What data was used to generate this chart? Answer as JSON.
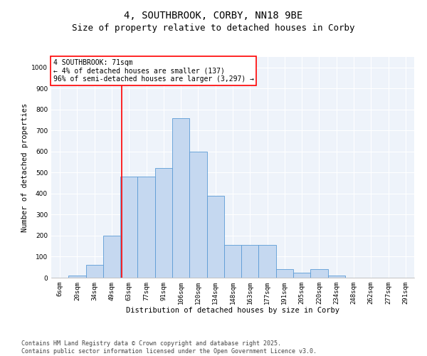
{
  "title1": "4, SOUTHBROOK, CORBY, NN18 9BE",
  "title2": "Size of property relative to detached houses in Corby",
  "xlabel": "Distribution of detached houses by size in Corby",
  "ylabel": "Number of detached properties",
  "categories": [
    "6sqm",
    "20sqm",
    "34sqm",
    "49sqm",
    "63sqm",
    "77sqm",
    "91sqm",
    "106sqm",
    "120sqm",
    "134sqm",
    "148sqm",
    "163sqm",
    "177sqm",
    "191sqm",
    "205sqm",
    "220sqm",
    "234sqm",
    "248sqm",
    "262sqm",
    "277sqm",
    "291sqm"
  ],
  "values": [
    0,
    10,
    60,
    200,
    480,
    480,
    520,
    760,
    600,
    390,
    155,
    155,
    155,
    40,
    25,
    40,
    10,
    0,
    0,
    0,
    0
  ],
  "bar_color": "#C5D8F0",
  "bar_edge_color": "#5B9BD5",
  "vline_color": "red",
  "vline_pos": 3.57,
  "annotation_text": "4 SOUTHBROOK: 71sqm\n← 4% of detached houses are smaller (137)\n96% of semi-detached houses are larger (3,297) →",
  "annotation_box_color": "white",
  "annotation_box_edgecolor": "red",
  "ylim": [
    0,
    1050
  ],
  "yticks": [
    0,
    100,
    200,
    300,
    400,
    500,
    600,
    700,
    800,
    900,
    1000
  ],
  "bg_color": "#EEF3FA",
  "grid_color": "white",
  "footer": "Contains HM Land Registry data © Crown copyright and database right 2025.\nContains public sector information licensed under the Open Government Licence v3.0.",
  "title_fontsize": 10,
  "subtitle_fontsize": 9,
  "label_fontsize": 7.5,
  "tick_fontsize": 6.5,
  "annotation_fontsize": 7,
  "footer_fontsize": 6
}
